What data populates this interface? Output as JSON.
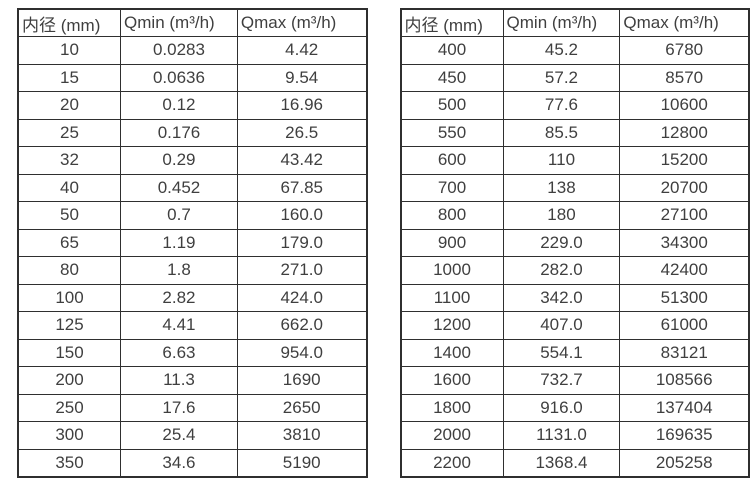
{
  "page": {
    "background_color": "#ffffff",
    "text_color": "#3f3f3f",
    "border_color": "#2f2f2f"
  },
  "column_keys": [
    "diameter",
    "qmin",
    "qmax"
  ],
  "tables": [
    {
      "name": "small-diameter-flow-table",
      "headers": [
        "内径 (mm)",
        "Qmin (m³/h)",
        "Qmax (m³/h)"
      ],
      "rows": [
        [
          "10",
          "0.0283",
          "4.42"
        ],
        [
          "15",
          "0.0636",
          "9.54"
        ],
        [
          "20",
          "0.12",
          "16.96"
        ],
        [
          "25",
          "0.176",
          "26.5"
        ],
        [
          "32",
          "0.29",
          "43.42"
        ],
        [
          "40",
          "0.452",
          "67.85"
        ],
        [
          "50",
          "0.7",
          "160.0"
        ],
        [
          "65",
          "1.19",
          "179.0"
        ],
        [
          "80",
          "1.8",
          "271.0"
        ],
        [
          "100",
          "2.82",
          "424.0"
        ],
        [
          "125",
          "4.41",
          "662.0"
        ],
        [
          "150",
          "6.63",
          "954.0"
        ],
        [
          "200",
          "11.3",
          "1690"
        ],
        [
          "250",
          "17.6",
          "2650"
        ],
        [
          "300",
          "25.4",
          "3810"
        ],
        [
          "350",
          "34.6",
          "5190"
        ]
      ]
    },
    {
      "name": "large-diameter-flow-table",
      "headers": [
        "内径 (mm)",
        "Qmin (m³/h)",
        "Qmax (m³/h)"
      ],
      "rows": [
        [
          "400",
          "45.2",
          "6780"
        ],
        [
          "450",
          "57.2",
          "8570"
        ],
        [
          "500",
          "77.6",
          "10600"
        ],
        [
          "550",
          "85.5",
          "12800"
        ],
        [
          "600",
          "110",
          "15200"
        ],
        [
          "700",
          "138",
          "20700"
        ],
        [
          "800",
          "180",
          "27100"
        ],
        [
          "900",
          "229.0",
          "34300"
        ],
        [
          "1000",
          "282.0",
          "42400"
        ],
        [
          "1100",
          "342.0",
          "51300"
        ],
        [
          "1200",
          "407.0",
          "61000"
        ],
        [
          "1400",
          "554.1",
          "83121"
        ],
        [
          "1600",
          "732.7",
          "108566"
        ],
        [
          "1800",
          "916.0",
          "137404"
        ],
        [
          "2000",
          "1131.0",
          "169635"
        ],
        [
          "2200",
          "1368.4",
          "205258"
        ]
      ]
    }
  ]
}
